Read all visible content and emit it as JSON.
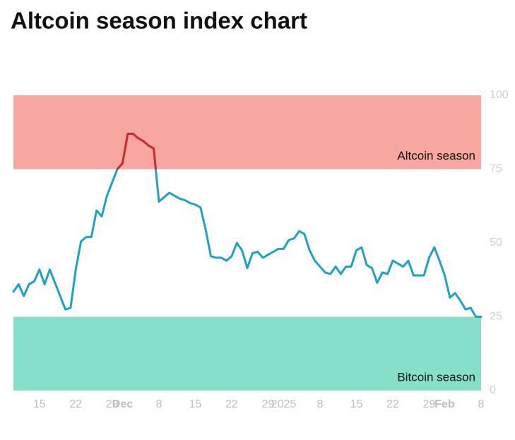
{
  "chart_data": {
    "type": "line",
    "title": "Altcoin season index chart",
    "x": [
      0,
      1,
      2,
      3,
      4,
      5,
      6,
      7,
      8,
      9,
      10,
      11,
      12,
      13,
      14,
      15,
      16,
      17,
      18,
      19,
      20,
      21,
      22,
      23,
      24,
      25,
      26,
      27,
      28,
      29,
      30,
      31,
      32,
      33,
      34,
      35,
      36,
      37,
      38,
      39,
      40,
      41,
      42,
      43,
      44,
      45,
      46,
      47,
      48,
      49,
      50,
      51,
      52,
      53,
      54,
      55,
      56,
      57,
      58,
      59,
      60,
      61,
      62,
      63,
      64,
      65,
      66,
      67,
      68,
      69,
      70,
      71,
      72,
      73,
      74,
      75,
      76,
      77,
      78,
      79,
      80,
      81,
      82,
      83,
      84,
      85,
      86,
      87,
      88,
      89,
      90
    ],
    "series": [
      {
        "color": "#1aa3c4",
        "values": [
          33.5,
          36,
          32,
          36,
          37,
          41,
          36,
          41,
          36.5,
          32,
          27.5,
          28,
          41,
          50.5,
          52,
          52,
          61,
          59,
          66,
          70.5,
          75,
          77,
          87,
          87,
          85.5,
          84.5,
          83,
          82,
          64,
          65.5,
          67,
          66,
          65,
          64.5,
          63.5,
          63,
          62,
          54.5,
          45.5,
          45,
          45,
          44,
          45.5,
          50,
          47.5,
          41.5,
          46.5,
          47,
          45,
          46,
          47,
          48,
          48,
          51,
          51.5,
          54,
          53,
          47.5,
          44,
          42,
          40,
          39.5,
          42,
          39.5,
          42,
          42,
          47.5,
          48.5,
          42.5,
          41.5,
          36.5,
          40,
          39.5,
          44,
          43,
          42,
          44,
          39,
          39,
          39,
          45,
          48.5,
          44,
          39,
          31.5,
          33,
          30.5,
          27.5,
          28,
          25,
          25
        ]
      }
    ],
    "highlight_color": "#d42a25",
    "bands": [
      {
        "name": "Altcoin season",
        "from": 75,
        "to": 100,
        "color": "#f7a6a0"
      },
      {
        "name": "Bitcoin season",
        "from": 0,
        "to": 25,
        "color": "#85dfc9"
      }
    ],
    "xlim": [
      0,
      90
    ],
    "xticks": [
      {
        "value": 5,
        "label": "15"
      },
      {
        "value": 12,
        "label": "22"
      },
      {
        "value": 19,
        "label": "29"
      },
      {
        "value": 21,
        "label": "Dec"
      },
      {
        "value": 28,
        "label": "8"
      },
      {
        "value": 35,
        "label": "15"
      },
      {
        "value": 42,
        "label": "22"
      },
      {
        "value": 49,
        "label": "29"
      },
      {
        "value": 52,
        "label": "2025"
      },
      {
        "value": 59,
        "label": "8"
      },
      {
        "value": 66,
        "label": "15"
      },
      {
        "value": 73,
        "label": "22"
      },
      {
        "value": 80,
        "label": "29"
      },
      {
        "value": 83,
        "label": "Feb"
      },
      {
        "value": 90,
        "label": "8"
      }
    ],
    "ylim": [
      0,
      100
    ],
    "yticks": [
      0,
      25,
      50,
      75,
      100
    ]
  }
}
